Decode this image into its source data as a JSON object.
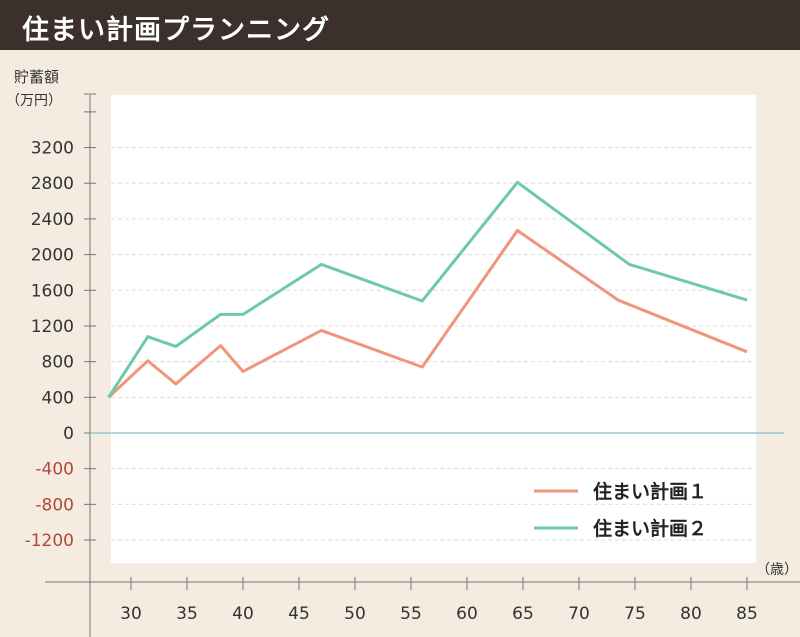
{
  "header": {
    "title": "住まい計画プランニング"
  },
  "colors": {
    "header_bg": "#3b302b",
    "page_bg": "#f4ece0",
    "plot_bg": "#ffffff",
    "series1": "#f0957b",
    "series2": "#6cc9ad",
    "zero_line": "#62b3bf",
    "negative_label": "#b0493a",
    "positive_label": "#333333"
  },
  "chart_data": {
    "type": "line",
    "ylabel": "貯蓄額",
    "yunit": "（万円）",
    "xunit": "（歳）",
    "x_ticks": [
      30,
      35,
      40,
      45,
      50,
      55,
      60,
      65,
      70,
      75,
      80,
      85
    ],
    "y_ticks": [
      3200,
      2800,
      2400,
      2000,
      1600,
      1200,
      800,
      400,
      0,
      -400,
      -800,
      -1200
    ],
    "y_tick_labels": [
      "3200",
      "2800",
      "2400",
      "2000",
      "1600",
      "1200",
      "800",
      "400",
      "0",
      "-400",
      "-800",
      "-1200"
    ],
    "xlim": [
      27,
      86
    ],
    "ylim": [
      -1450,
      3800
    ],
    "grid": true,
    "legend_position": "bottom-right",
    "series": [
      {
        "name": "住まい計画１",
        "x": [
          28,
          31.5,
          34,
          38,
          40,
          47,
          56,
          64.5,
          73.5,
          85
        ],
        "y": [
          400,
          810,
          550,
          980,
          690,
          1150,
          740,
          2270,
          1490,
          910
        ]
      },
      {
        "name": "住まい計画２",
        "x": [
          28,
          31.5,
          34,
          38,
          40,
          47,
          56,
          64.5,
          74.5,
          85
        ],
        "y": [
          400,
          1080,
          970,
          1330,
          1330,
          1890,
          1480,
          2810,
          1890,
          1490
        ]
      }
    ]
  }
}
